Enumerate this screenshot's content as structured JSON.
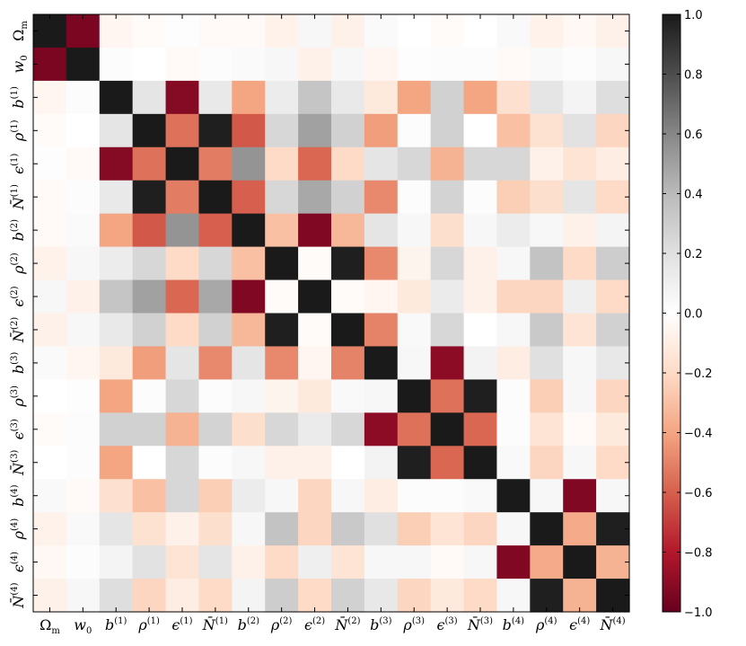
{
  "chart_data": {
    "type": "heatmap",
    "title": "",
    "xlabel": "",
    "ylabel": "",
    "colormap": "RdGy",
    "vmin": -1.0,
    "vmax": 1.0,
    "row_labels": [
      {
        "base": "Ω",
        "sub": "m",
        "sup": ""
      },
      {
        "base": "w",
        "sub": "0",
        "sup": ""
      },
      {
        "base": "b",
        "sub": "",
        "sup": "(1)"
      },
      {
        "base": "ρ",
        "sub": "",
        "sup": "(1)"
      },
      {
        "base": "ϵ",
        "sub": "",
        "sup": "(1)"
      },
      {
        "base": "N̄",
        "sub": "",
        "sup": "(1)"
      },
      {
        "base": "b",
        "sub": "",
        "sup": "(2)"
      },
      {
        "base": "ρ",
        "sub": "",
        "sup": "(2)"
      },
      {
        "base": "ϵ",
        "sub": "",
        "sup": "(2)"
      },
      {
        "base": "N̄",
        "sub": "",
        "sup": "(2)"
      },
      {
        "base": "b",
        "sub": "",
        "sup": "(3)"
      },
      {
        "base": "ρ",
        "sub": "",
        "sup": "(3)"
      },
      {
        "base": "ϵ",
        "sub": "",
        "sup": "(3)"
      },
      {
        "base": "N̄",
        "sub": "",
        "sup": "(3)"
      },
      {
        "base": "b",
        "sub": "",
        "sup": "(4)"
      },
      {
        "base": "ρ",
        "sub": "",
        "sup": "(4)"
      },
      {
        "base": "ϵ",
        "sub": "",
        "sup": "(4)"
      },
      {
        "base": "N̄",
        "sub": "",
        "sup": "(4)"
      }
    ],
    "matrix": [
      [
        1.0,
        -0.95,
        -0.05,
        -0.02,
        0.01,
        -0.03,
        -0.03,
        -0.07,
        0.05,
        -0.08,
        0.03,
        0.0,
        -0.02,
        0.0,
        0.04,
        -0.07,
        -0.04,
        -0.08
      ],
      [
        -0.95,
        1.0,
        0.02,
        0.0,
        -0.03,
        0.02,
        0.03,
        0.05,
        -0.08,
        0.05,
        -0.05,
        0.01,
        0.02,
        0.02,
        -0.03,
        0.04,
        0.02,
        0.05
      ],
      [
        -0.05,
        0.02,
        1.0,
        0.17,
        -0.92,
        0.14,
        -0.4,
        0.12,
        0.34,
        0.14,
        -0.12,
        -0.4,
        0.28,
        -0.4,
        -0.17,
        0.17,
        0.07,
        0.21
      ],
      [
        -0.02,
        0.0,
        0.17,
        1.0,
        -0.55,
        0.98,
        -0.62,
        0.25,
        0.5,
        0.28,
        -0.42,
        0.02,
        0.28,
        0.0,
        -0.3,
        -0.16,
        0.19,
        -0.22
      ],
      [
        0.01,
        -0.03,
        -0.92,
        -0.55,
        1.0,
        -0.52,
        0.55,
        -0.2,
        -0.58,
        -0.2,
        0.17,
        0.25,
        -0.35,
        0.25,
        0.25,
        -0.08,
        -0.15,
        -0.1
      ],
      [
        -0.03,
        0.02,
        0.14,
        0.98,
        -0.52,
        1.0,
        -0.6,
        0.25,
        0.47,
        0.28,
        -0.48,
        0.02,
        0.27,
        0.02,
        -0.25,
        -0.18,
        0.17,
        -0.2
      ],
      [
        -0.03,
        0.03,
        -0.4,
        -0.62,
        0.55,
        -0.6,
        1.0,
        -0.3,
        -0.93,
        -0.33,
        0.17,
        0.05,
        -0.18,
        0.05,
        0.12,
        0.05,
        -0.08,
        0.07
      ],
      [
        -0.07,
        0.05,
        0.12,
        0.25,
        -0.2,
        0.25,
        -0.3,
        1.0,
        -0.02,
        0.98,
        -0.48,
        -0.06,
        0.25,
        -0.08,
        0.05,
        0.35,
        -0.2,
        0.3
      ],
      [
        0.05,
        -0.08,
        0.34,
        0.5,
        -0.58,
        0.47,
        -0.93,
        -0.02,
        1.0,
        -0.02,
        -0.05,
        -0.12,
        0.13,
        -0.08,
        -0.22,
        -0.22,
        0.1,
        -0.2
      ],
      [
        -0.08,
        0.05,
        0.14,
        0.28,
        -0.2,
        0.28,
        -0.33,
        0.98,
        -0.02,
        1.0,
        -0.5,
        0.04,
        0.25,
        0.0,
        0.05,
        0.32,
        -0.15,
        0.28
      ],
      [
        0.03,
        -0.05,
        -0.12,
        -0.42,
        0.17,
        -0.48,
        0.17,
        -0.48,
        -0.05,
        -0.5,
        1.0,
        0.05,
        -0.9,
        0.08,
        -0.1,
        0.2,
        0.05,
        0.15
      ],
      [
        0.0,
        0.01,
        -0.4,
        0.02,
        0.25,
        0.02,
        0.05,
        -0.06,
        -0.12,
        0.04,
        0.05,
        1.0,
        -0.55,
        0.98,
        0.02,
        -0.25,
        0.05,
        -0.22
      ],
      [
        -0.02,
        0.02,
        0.28,
        0.28,
        -0.35,
        0.27,
        -0.18,
        0.25,
        0.13,
        0.25,
        -0.9,
        -0.55,
        1.0,
        -0.58,
        0.02,
        -0.15,
        -0.03,
        -0.12
      ],
      [
        0.0,
        0.02,
        -0.4,
        0.0,
        0.25,
        0.02,
        0.05,
        -0.08,
        -0.08,
        0.0,
        0.08,
        0.98,
        -0.58,
        1.0,
        0.04,
        -0.22,
        0.05,
        -0.2
      ],
      [
        0.04,
        -0.03,
        -0.17,
        -0.3,
        0.25,
        -0.25,
        0.12,
        0.05,
        -0.22,
        0.05,
        -0.1,
        0.02,
        0.02,
        0.04,
        1.0,
        0.05,
        -0.93,
        0.05
      ],
      [
        -0.07,
        0.04,
        0.17,
        -0.16,
        -0.08,
        -0.18,
        0.05,
        0.35,
        -0.22,
        0.32,
        0.2,
        -0.25,
        -0.15,
        -0.22,
        0.05,
        1.0,
        -0.38,
        0.98
      ],
      [
        -0.04,
        0.02,
        0.07,
        0.19,
        -0.15,
        0.17,
        -0.08,
        -0.2,
        0.1,
        -0.15,
        0.05,
        0.05,
        -0.03,
        0.05,
        -0.93,
        -0.38,
        1.0,
        -0.35
      ],
      [
        -0.08,
        0.05,
        0.21,
        -0.22,
        -0.1,
        -0.2,
        0.07,
        0.3,
        -0.2,
        0.28,
        0.15,
        -0.22,
        -0.12,
        -0.2,
        0.05,
        0.98,
        -0.35,
        1.0
      ]
    ],
    "colorbar": {
      "ticks": [
        1.0,
        0.8,
        0.6,
        0.4,
        0.2,
        0.0,
        -0.2,
        -0.4,
        -0.6,
        -0.8,
        -1.0
      ],
      "tick_labels": [
        "1.0",
        "0.8",
        "0.6",
        "0.4",
        "0.2",
        "0.0",
        "−0.2",
        "−0.4",
        "−0.6",
        "−0.8",
        "−1.0"
      ]
    },
    "grid": false,
    "legend": "colorbar-right"
  }
}
